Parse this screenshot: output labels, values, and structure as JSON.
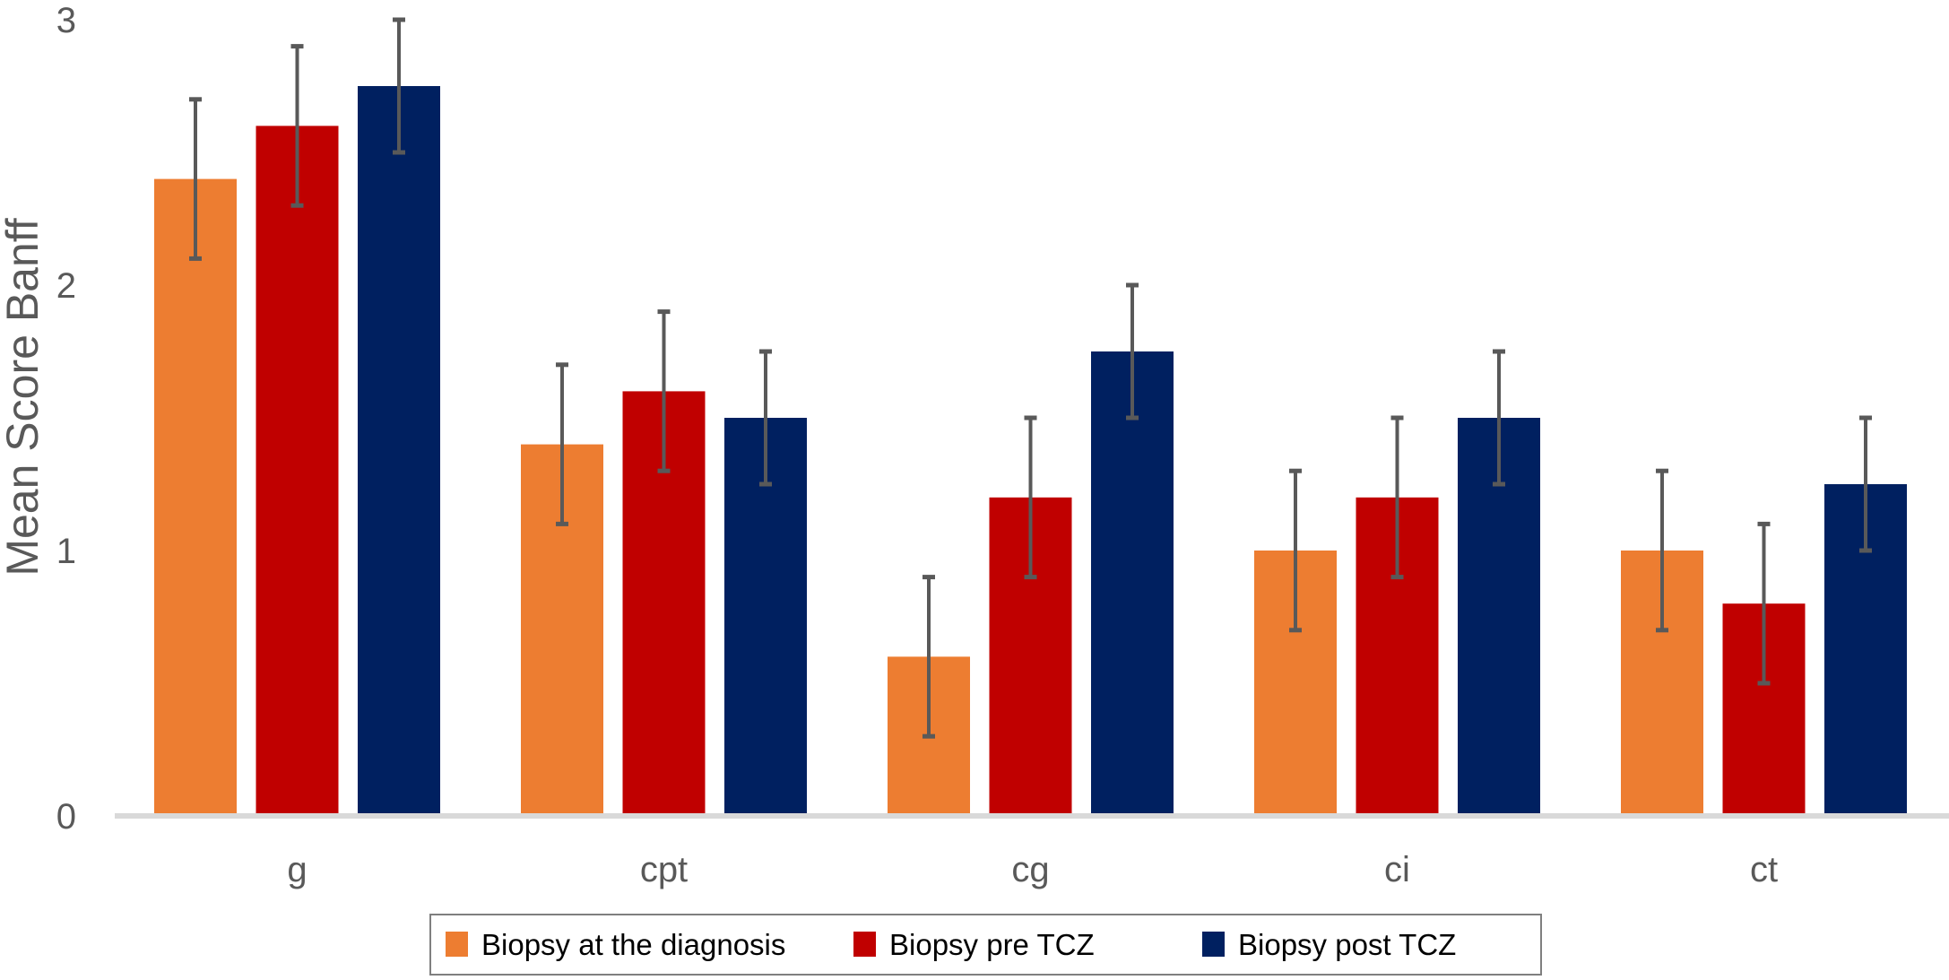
{
  "chart_data": {
    "type": "bar",
    "title": "",
    "xlabel": "",
    "ylabel": "Mean Score Banff",
    "ylim": [
      0,
      3
    ],
    "yticks": [
      "0",
      "1",
      "2",
      "3"
    ],
    "grid": false,
    "legend_position": "bottom",
    "categories": [
      "g",
      "cpt",
      "cg",
      "ci",
      "ct"
    ],
    "series": [
      {
        "name": "Biopsy at the diagnosis",
        "color": "#ED7D31",
        "values": [
          2.4,
          1.4,
          0.6,
          1.0,
          1.0
        ],
        "errors": [
          0.3,
          0.3,
          0.3,
          0.3,
          0.3
        ]
      },
      {
        "name": "Biopsy pre TCZ",
        "color": "#C00000",
        "values": [
          2.6,
          1.6,
          1.2,
          1.2,
          0.8
        ],
        "errors": [
          0.3,
          0.3,
          0.3,
          0.3,
          0.3
        ]
      },
      {
        "name": "Biopsy post TCZ",
        "color": "#002060",
        "values": [
          2.75,
          1.5,
          1.75,
          1.5,
          1.25
        ],
        "errors": [
          0.25,
          0.25,
          0.25,
          0.25,
          0.25
        ]
      }
    ],
    "error_bar_color": "#595959",
    "axis_color": "#D9D9D9"
  }
}
